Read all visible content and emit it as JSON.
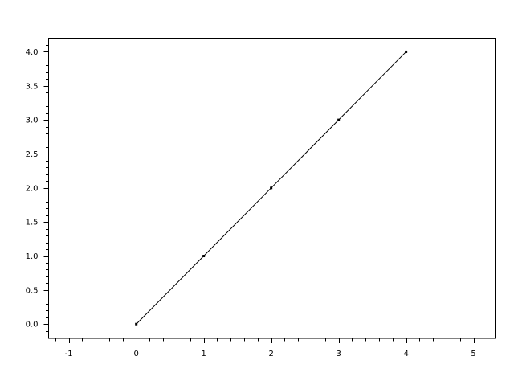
{
  "chart_data": {
    "type": "line",
    "title": "",
    "xlabel": "",
    "ylabel": "",
    "x": [
      0,
      1,
      2,
      3,
      4
    ],
    "series": [
      {
        "values": [
          0,
          1,
          2,
          3,
          4
        ],
        "color": "#000000",
        "marker": "point"
      }
    ],
    "xlim": [
      -1.3,
      5.32
    ],
    "ylim": [
      -0.21,
      4.2
    ],
    "x_ticks": [
      "-1",
      "0",
      "1",
      "2",
      "3",
      "4",
      "5"
    ],
    "y_ticks": [
      "0.0",
      "0.5",
      "1.0",
      "1.5",
      "2.0",
      "2.5",
      "3.0",
      "3.5",
      "4.0"
    ],
    "x_minor_step": 0.2,
    "y_minor_step": 0.1,
    "grid": false
  }
}
